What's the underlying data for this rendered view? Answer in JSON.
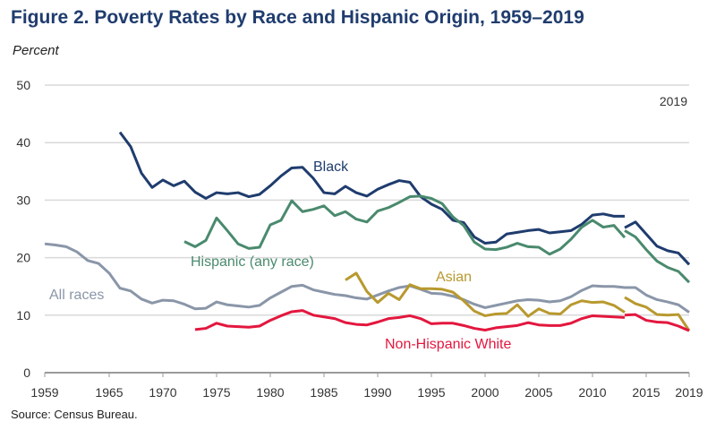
{
  "chart_data": {
    "type": "line",
    "title": "Figure 2. Poverty Rates by Race and Hispanic Origin, 1959–2019",
    "ylabel": "Percent",
    "xlabel": "",
    "source": "Source: Census Bureau.",
    "annotation": "2019",
    "ylim": [
      0,
      50
    ],
    "xlim": [
      1959,
      2019
    ],
    "yticks": [
      "0",
      "10",
      "20",
      "30",
      "40",
      "50"
    ],
    "xticks": [
      "1959",
      "1965",
      "1970",
      "1975",
      "1980",
      "1985",
      "1990",
      "1995",
      "2000",
      "2005",
      "2010",
      "2015",
      "2019"
    ],
    "grid": true,
    "series": [
      {
        "name": "All races",
        "color": "#8a96a8",
        "start": 1959,
        "values": [
          22.4,
          22.2,
          21.9,
          21.0,
          19.5,
          19.0,
          17.3,
          14.7,
          14.2,
          12.8,
          12.1,
          12.6,
          12.5,
          11.9,
          11.1,
          11.2,
          12.3,
          11.8,
          11.6,
          11.4,
          11.7,
          13.0,
          14.0,
          15.0,
          15.2,
          14.4,
          14.0,
          13.6,
          13.4,
          13.0,
          12.8,
          13.5,
          14.2,
          14.8,
          15.1,
          14.5,
          13.8,
          13.7,
          13.3,
          12.7,
          11.9,
          11.3,
          11.7,
          12.1,
          12.5,
          12.7,
          12.6,
          12.3,
          12.5,
          13.2,
          14.3,
          15.1,
          15.0,
          15.0,
          14.8,
          14.8,
          13.5,
          12.7,
          12.3,
          11.8,
          10.5
        ]
      },
      {
        "name": "Black",
        "color": "#1f3c6e",
        "segments": [
          {
            "start": 1966,
            "values": [
              41.8,
              39.3,
              34.7,
              32.2,
              33.5,
              32.5,
              33.3,
              31.4,
              30.3,
              31.3,
              31.1,
              31.3,
              30.6,
              31.0,
              32.5,
              34.2,
              35.6,
              35.7,
              33.8,
              31.3,
              31.1,
              32.4,
              31.3,
              30.7,
              31.9,
              32.7,
              33.4,
              33.1,
              30.6,
              29.3,
              28.4,
              26.5,
              26.1,
              23.6,
              22.5,
              22.7,
              24.1,
              24.4,
              24.7,
              24.9,
              24.3,
              24.5,
              24.7,
              25.8,
              27.4,
              27.6,
              27.2,
              27.2
            ]
          },
          {
            "start": 2013,
            "values": [
              25.2,
              26.2,
              24.1,
              22.0,
              21.2,
              20.8,
              18.8
            ]
          }
        ]
      },
      {
        "name": "Hispanic (any race)",
        "color": "#4a8a6e",
        "segments": [
          {
            "start": 1972,
            "values": [
              22.8,
              21.9,
              23.0,
              26.9,
              24.7,
              22.4,
              21.6,
              21.8,
              25.7,
              26.5,
              29.9,
              28.0,
              28.4,
              29.0,
              27.3,
              28.0,
              26.7,
              26.2,
              28.1,
              28.7,
              29.6,
              30.6,
              30.7,
              30.3,
              29.4,
              27.1,
              25.6,
              22.7,
              21.5,
              21.4,
              21.8,
              22.5,
              21.9,
              21.8,
              20.6,
              21.5,
              23.2,
              25.3,
              26.5,
              25.3,
              25.6,
              23.5
            ]
          },
          {
            "start": 2013,
            "values": [
              24.7,
              23.6,
              21.4,
              19.4,
              18.3,
              17.6,
              15.7
            ]
          }
        ]
      },
      {
        "name": "Asian",
        "color": "#b8992e",
        "segments": [
          {
            "start": 1987,
            "values": [
              16.1,
              17.3,
              14.1,
              12.2,
              13.8,
              12.7,
              15.3,
              14.6,
              14.6,
              14.5,
              14.0,
              12.5,
              10.7,
              9.9,
              10.2,
              10.3,
              11.8,
              9.8,
              11.1,
              10.3,
              10.2,
              11.8,
              12.5,
              12.2,
              12.3,
              11.7,
              10.5
            ]
          },
          {
            "start": 2013,
            "values": [
              13.1,
              12.0,
              11.4,
              10.1,
              10.0,
              10.1,
              7.3
            ]
          }
        ]
      },
      {
        "name": "Non-Hispanic White",
        "color": "#e3173e",
        "segments": [
          {
            "start": 1973,
            "values": [
              7.5,
              7.7,
              8.6,
              8.1,
              8.0,
              7.9,
              8.1,
              9.1,
              9.9,
              10.6,
              10.8,
              10.0,
              9.7,
              9.4,
              8.7,
              8.4,
              8.3,
              8.8,
              9.4,
              9.6,
              9.9,
              9.4,
              8.5,
              8.6,
              8.6,
              8.2,
              7.7,
              7.4,
              7.8,
              8.0,
              8.2,
              8.7,
              8.3,
              8.2,
              8.2,
              8.6,
              9.4,
              9.9,
              9.8,
              9.7,
              9.6
            ]
          },
          {
            "start": 2013,
            "values": [
              10.0,
              10.1,
              9.1,
              8.8,
              8.7,
              8.1,
              7.3
            ]
          }
        ]
      }
    ]
  }
}
